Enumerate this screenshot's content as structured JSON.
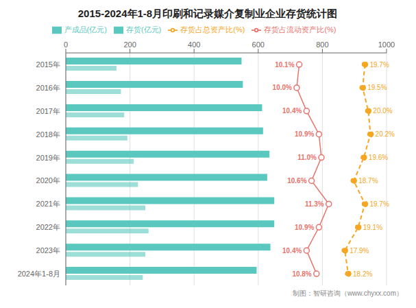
{
  "chart_data": {
    "type": "bar",
    "orientation": "horizontal",
    "title": "2015-2024年1-8月印刷和记录媒介复制业企业存货统计图",
    "categories": [
      "2015年",
      "2016年",
      "2017年",
      "2018年",
      "2019年",
      "2020年",
      "2021年",
      "2022年",
      "2023年",
      "2024年1-8月"
    ],
    "xlim": [
      0,
      1000
    ],
    "xticks": [
      0,
      200,
      400,
      600,
      800,
      1000
    ],
    "grid": true,
    "legend": "top",
    "annotations": [
      "制图：智研咨询（www.chyxx.com）"
    ],
    "series": [
      {
        "name": "存货(亿元)",
        "color": "#5BC8C0",
        "values": [
          548,
          552,
          612,
          615,
          635,
          628,
          650,
          650,
          638,
          595
        ]
      },
      {
        "name": "产成品(亿元)",
        "color": "#5BC8C0",
        "values": [
          158,
          172,
          182,
          192,
          212,
          225,
          248,
          258,
          248,
          240
        ]
      },
      {
        "name": "存货占流动资产比(%)",
        "type": "line",
        "color": "#E8736B",
        "marker": "o",
        "line_style": "solid",
        "data_labels": true,
        "values": [
          10.1,
          10.0,
          10.4,
          10.9,
          11.0,
          10.6,
          11.3,
          10.9,
          10.4,
          10.8
        ],
        "value_labels": [
          "10.1%",
          "10.0%",
          "10.4%",
          "10.9%",
          "11.0%",
          "10.6%",
          "11.3%",
          "10.9%",
          "10.4%",
          "10.8%"
        ]
      },
      {
        "name": "存货占总资产比(%)",
        "type": "line",
        "color": "#F5A623",
        "marker": "o",
        "line_style": "dashed",
        "data_labels": true,
        "values": [
          19.7,
          19.5,
          20.0,
          20.2,
          19.6,
          18.7,
          19.7,
          19.1,
          17.9,
          18.2
        ],
        "value_labels": [
          "19.7%",
          "19.5%",
          "20.0%",
          "20.2%",
          "19.6%",
          "18.7%",
          "19.7%",
          "19.1%",
          "17.9%",
          "18.2%"
        ]
      }
    ]
  }
}
